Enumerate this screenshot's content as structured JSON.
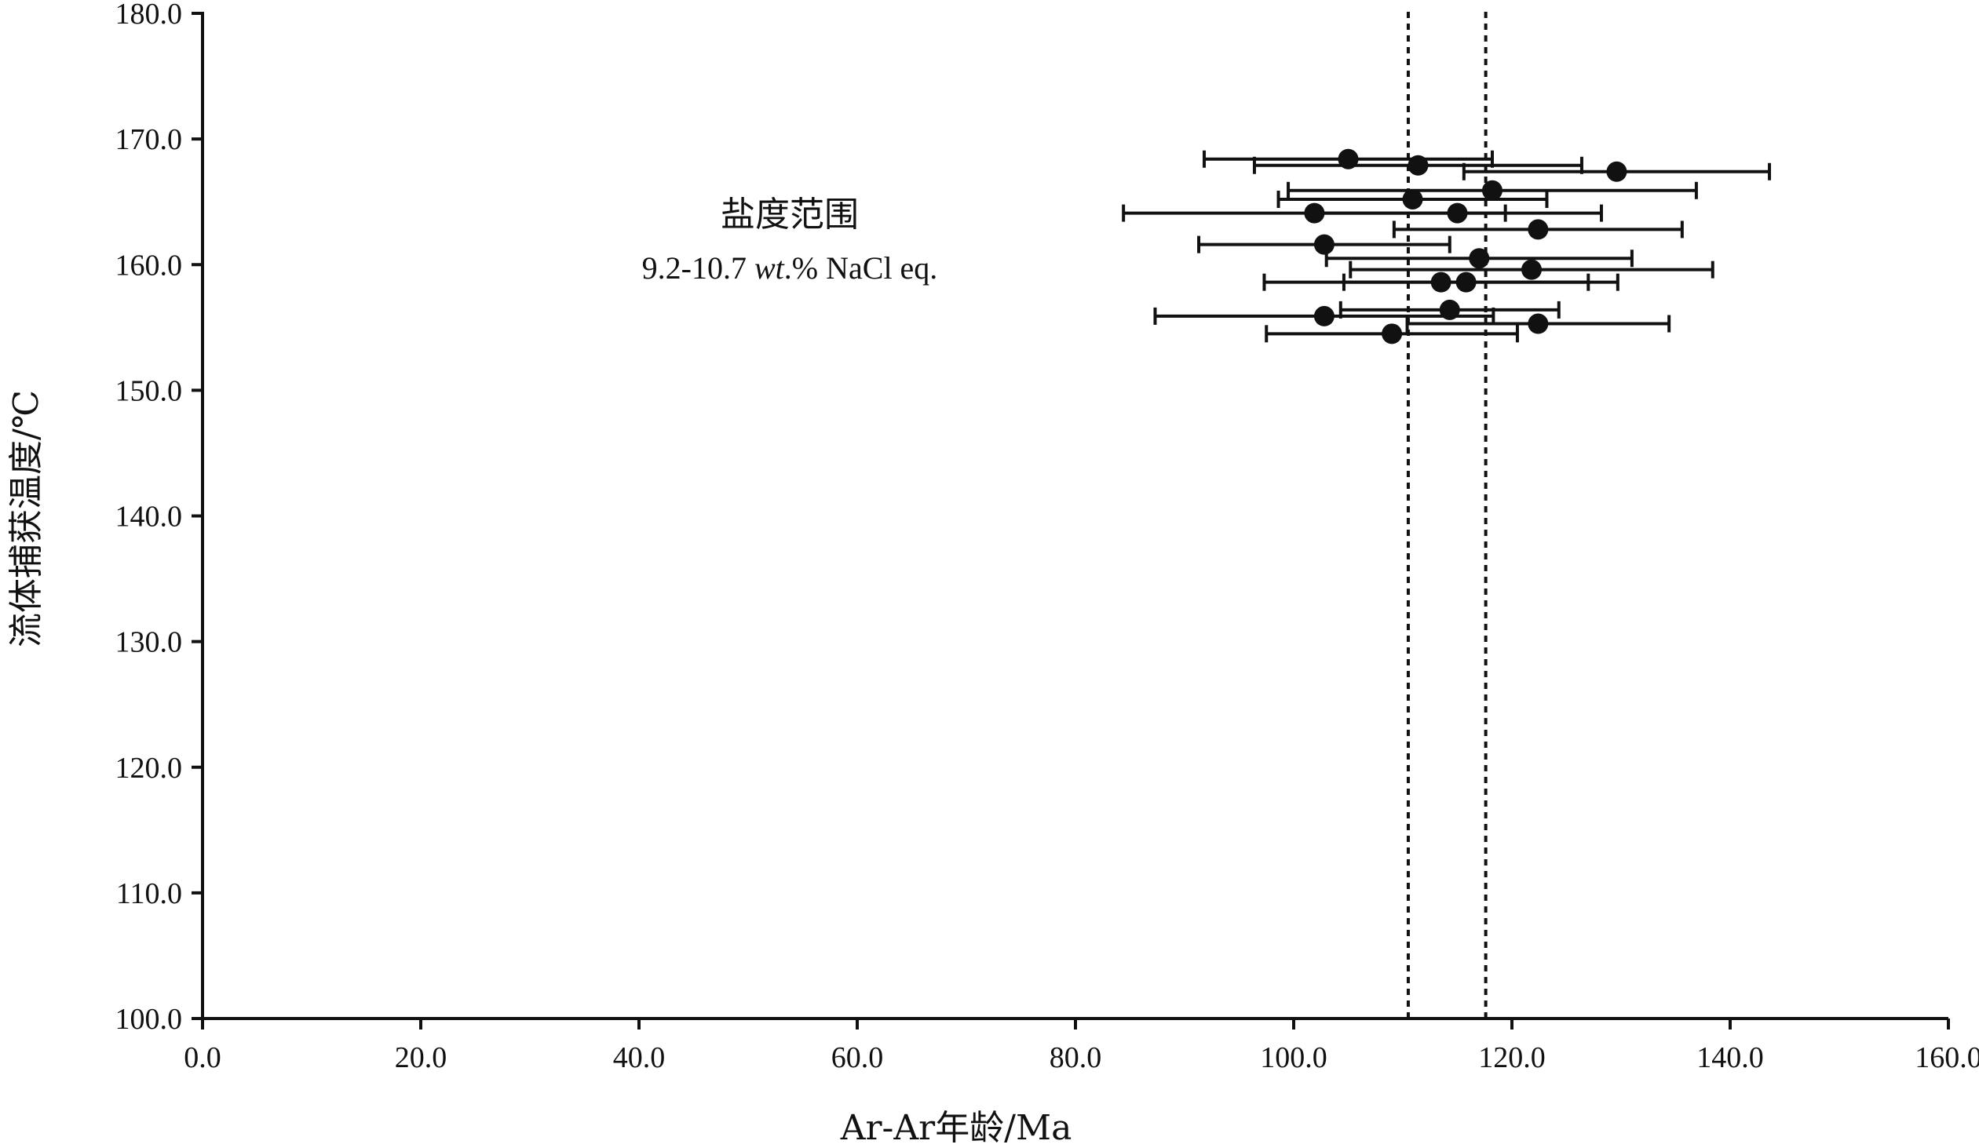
{
  "chart_data": {
    "type": "scatter",
    "title": "",
    "xlabel": "Ar-Ar年龄/Ma",
    "ylabel": "流体捕获温度/℃",
    "xlim": [
      0,
      160
    ],
    "ylim": [
      100,
      180
    ],
    "x_ticks": [
      "0.0",
      "20.0",
      "40.0",
      "60.0",
      "80.0",
      "100.0",
      "120.0",
      "140.0",
      "160.0"
    ],
    "y_ticks": [
      "100.0",
      "110.0",
      "120.0",
      "130.0",
      "140.0",
      "150.0",
      "160.0",
      "170.0",
      "180.0"
    ],
    "grid": false,
    "points": [
      {
        "x": 105.0,
        "y": 168.4,
        "xerr": 13.2
      },
      {
        "x": 111.4,
        "y": 167.9,
        "xerr": 15.0
      },
      {
        "x": 129.6,
        "y": 167.4,
        "xerr": 14.0
      },
      {
        "x": 118.2,
        "y": 165.9,
        "xerr": 18.7
      },
      {
        "x": 110.9,
        "y": 165.2,
        "xerr": 12.3
      },
      {
        "x": 101.9,
        "y": 164.1,
        "xerr": 17.5
      },
      {
        "x": 115.0,
        "y": 164.1,
        "xerr": 13.2
      },
      {
        "x": 122.4,
        "y": 162.8,
        "xerr": 13.2
      },
      {
        "x": 102.8,
        "y": 161.6,
        "xerr": 11.5
      },
      {
        "x": 117.0,
        "y": 160.5,
        "xerr": 14.0
      },
      {
        "x": 121.8,
        "y": 159.6,
        "xerr": 16.6
      },
      {
        "x": 113.5,
        "y": 158.6,
        "xerr": 16.2
      },
      {
        "x": 115.8,
        "y": 158.6,
        "xerr": 11.2
      },
      {
        "x": 114.3,
        "y": 156.4,
        "xerr": 10.0
      },
      {
        "x": 102.8,
        "y": 155.9,
        "xerr": 15.5
      },
      {
        "x": 122.4,
        "y": 155.3,
        "xerr": 12.0
      },
      {
        "x": 109.0,
        "y": 154.5,
        "xerr": 11.5
      }
    ],
    "reference_lines_x": [
      110.5,
      117.6
    ],
    "reference_line_style": "dotted",
    "color": "#111111"
  },
  "annotation": {
    "line1": "盐度范围",
    "line2_prefix": "9.2-10.7 ",
    "line2_italic": "wt",
    "line2_suffix": ".% NaCl eq."
  }
}
